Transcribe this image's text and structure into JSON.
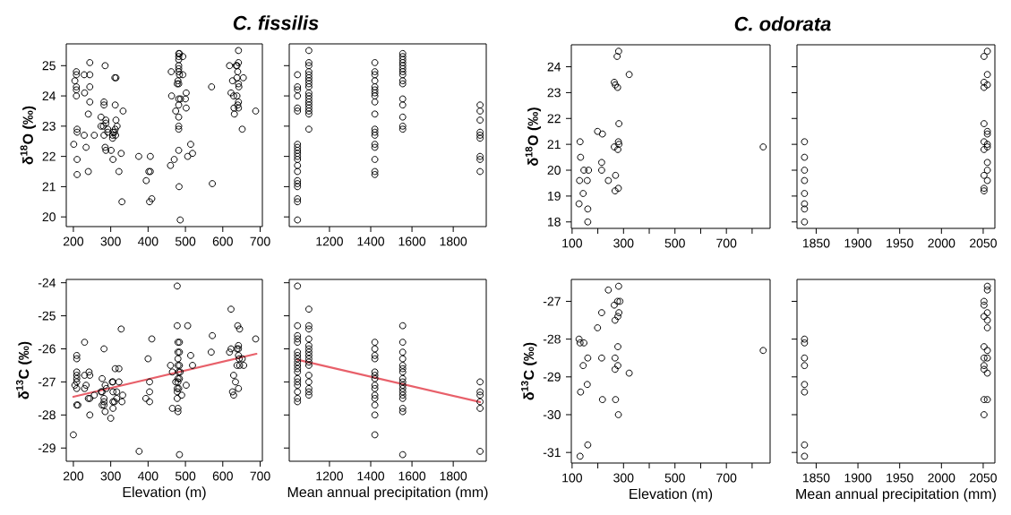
{
  "chart_data": [
    {
      "type": "scatter",
      "title": "C. fissilis",
      "ylabel": "δ$^{18}$O (‰)",
      "marker": "circle",
      "xlim": [
        181,
        706
      ],
      "ylim": [
        19.68,
        25.72
      ],
      "xticks": [
        200,
        300,
        400,
        500,
        600,
        700
      ],
      "yticks": [
        20,
        21,
        22,
        23,
        24,
        25
      ],
      "series": [
        {
          "color": "#000000",
          "x": [
            201,
            204,
            208,
            208,
            208,
            208,
            208,
            210,
            210,
            210,
            210,
            229,
            230,
            229,
            234,
            244,
            244,
            244,
            244,
            240,
            240,
            256,
            285,
            282,
            282,
            274,
            274,
            280,
            282,
            287,
            287,
            285,
            287,
            292,
            292,
            301,
            306,
            305,
            305,
            306,
            312,
            310,
            313,
            311,
            314,
            312,
            314,
            317,
            322,
            328,
            333,
            330,
            375,
            395,
            406,
            402,
            406,
            404,
            410,
            460,
            463,
            462,
            470,
            474,
            482,
            484,
            482,
            482,
            482,
            482,
            482,
            484,
            480,
            482,
            478,
            482,
            482,
            487,
            482,
            482,
            482,
            482,
            483,
            486,
            493,
            493,
            502,
            500,
            502,
            506,
            514,
            519,
            570,
            572,
            618,
            622,
            626,
            629,
            630,
            631,
            636,
            638,
            642,
            642,
            640,
            638,
            642,
            643,
            638,
            642,
            640,
            642,
            652,
            655,
            688
          ],
          "values": [
            22.4,
            24.5,
            24.8,
            24.7,
            24.3,
            24.2,
            24.0,
            22.9,
            22.8,
            21.9,
            21.4,
            24.7,
            24.1,
            22.7,
            22.3,
            25.1,
            24.7,
            24.3,
            23.8,
            23.4,
            21.5,
            22.7,
            25.0,
            23.8,
            23.7,
            23.3,
            23.0,
            23.0,
            22.7,
            23.2,
            23.1,
            22.3,
            22.2,
            22.9,
            22.8,
            22.2,
            21.9,
            22.7,
            22.6,
            22.8,
            22.9,
            22.8,
            22.7,
            24.6,
            24.6,
            23.7,
            23.2,
            23.0,
            21.5,
            22.1,
            23.5,
            20.5,
            22.0,
            21.2,
            22.0,
            21.5,
            21.5,
            20.5,
            20.6,
            21.7,
            24.0,
            24.8,
            21.9,
            23.5,
            25.4,
            25.4,
            25.3,
            25.2,
            25.0,
            24.9,
            24.8,
            24.7,
            24.5,
            24.4,
            24.4,
            23.7,
            23.9,
            23.9,
            23.3,
            23.0,
            22.9,
            22.2,
            21.0,
            19.9,
            25.3,
            24.7,
            24.1,
            23.9,
            23.6,
            22.0,
            22.4,
            22.1,
            24.3,
            21.1,
            25.0,
            24.1,
            24.5,
            24.0,
            23.6,
            23.4,
            25.0,
            25.0,
            25.5,
            25.1,
            24.8,
            24.6,
            24.4,
            24.3,
            24.0,
            23.8,
            23.7,
            23.6,
            22.9,
            24.6,
            23.5
          ]
        }
      ]
    },
    {
      "type": "scatter",
      "marker": "circle",
      "tick_labels": "x",
      "xlim": [
        1005,
        1960
      ],
      "ylim": [
        19.68,
        25.72
      ],
      "xticks": [
        1200,
        1400,
        1600,
        1800
      ],
      "yticks": [
        20,
        21,
        22,
        23,
        24,
        25
      ],
      "series": [
        {
          "color": "#000000",
          "x": [
            1045,
            1045,
            1045,
            1045,
            1045,
            1045,
            1045,
            1045,
            1045,
            1045,
            1045,
            1045,
            1045,
            1045,
            1045,
            1045,
            1045,
            1045,
            1045,
            1045,
            1100,
            1100,
            1100,
            1100,
            1100,
            1100,
            1100,
            1100,
            1100,
            1100,
            1100,
            1100,
            1100,
            1100,
            1100,
            1100,
            1100,
            1100,
            1420,
            1420,
            1420,
            1420,
            1420,
            1420,
            1420,
            1420,
            1420,
            1420,
            1420,
            1420,
            1420,
            1420,
            1420,
            1420,
            1420,
            1420,
            1555,
            1555,
            1555,
            1555,
            1555,
            1555,
            1555,
            1555,
            1555,
            1555,
            1555,
            1555,
            1555,
            1555,
            1555,
            1930,
            1930,
            1930,
            1930,
            1930,
            1930,
            1930,
            1930,
            1930
          ],
          "values": [
            24.7,
            24.3,
            24.2,
            24.0,
            23.6,
            23.5,
            22.4,
            22.3,
            22.2,
            22.1,
            22.0,
            21.9,
            21.7,
            21.5,
            21.2,
            21.1,
            21.0,
            20.6,
            20.5,
            19.9,
            25.5,
            25.1,
            25.0,
            24.8,
            24.7,
            24.6,
            24.5,
            24.4,
            24.3,
            24.1,
            24.0,
            23.9,
            23.8,
            23.7,
            23.6,
            23.5,
            23.4,
            22.9,
            25.1,
            24.8,
            24.7,
            24.5,
            24.3,
            24.2,
            24.1,
            24.0,
            23.8,
            23.4,
            22.9,
            22.8,
            22.7,
            22.4,
            22.3,
            21.9,
            21.5,
            21.4,
            25.4,
            25.3,
            25.2,
            25.1,
            25.0,
            24.9,
            24.8,
            24.7,
            24.5,
            24.4,
            23.9,
            23.7,
            23.3,
            23.0,
            22.9,
            23.7,
            23.5,
            23.2,
            22.8,
            22.7,
            22.6,
            22.0,
            21.9,
            21.5
          ]
        }
      ]
    },
    {
      "type": "scatter",
      "title": "C. odorata",
      "ylabel": "δ$^{18}$O (‰)",
      "marker": "circle",
      "xlim": [
        97,
        870
      ],
      "ylim": [
        17.75,
        24.85
      ],
      "xticks": [
        100,
        {
          "value": 200,
          "label": null
        },
        300,
        {
          "value": 400,
          "label": null
        },
        500,
        {
          "value": 600,
          "label": null
        },
        700,
        {
          "value": 800,
          "label": null
        }
      ],
      "yticks": [
        18,
        19,
        20,
        21,
        22,
        23,
        24
      ],
      "series": [
        {
          "color": "#000000",
          "x": [
            131,
            133,
            129,
            127,
            146,
            164,
            159,
            143,
            161,
            161,
            199,
            218,
            215,
            215,
            241,
            264,
            268,
            277,
            275,
            281,
            322,
            282,
            264,
            280,
            282,
            278,
            269,
            267,
            280,
            843
          ],
          "values": [
            21.1,
            20.5,
            19.6,
            18.7,
            20.0,
            20.0,
            19.6,
            19.1,
            18.5,
            18.0,
            21.5,
            21.4,
            20.3,
            20.0,
            19.6,
            23.4,
            23.3,
            23.2,
            24.4,
            24.6,
            23.7,
            21.8,
            20.9,
            21.1,
            21.0,
            20.8,
            19.8,
            19.2,
            19.3,
            20.9
          ]
        }
      ]
    },
    {
      "type": "scatter",
      "marker": "circle",
      "tick_labels": "x",
      "xlim": [
        1827,
        2064
      ],
      "ylim": [
        17.75,
        24.85
      ],
      "xticks": [
        1850,
        1900,
        1950,
        2000,
        2050
      ],
      "yticks": [
        18,
        19,
        20,
        21,
        22,
        23,
        24
      ],
      "series": [
        {
          "color": "#000000",
          "x": [
            1836,
            1836,
            1836,
            1836,
            1836,
            1836,
            1836,
            1836,
            2051,
            2051,
            2051,
            2051,
            2051,
            2051,
            2051,
            2051,
            2051,
            2055,
            2055,
            2055,
            2055,
            2055,
            2055,
            2055,
            2055,
            2055,
            2055
          ],
          "values": [
            21.1,
            20.5,
            20.0,
            19.6,
            19.1,
            18.7,
            18.5,
            18.0,
            24.4,
            23.4,
            23.2,
            21.8,
            21.1,
            20.8,
            19.8,
            19.3,
            19.2,
            24.6,
            23.7,
            23.3,
            21.5,
            21.4,
            21.0,
            20.9,
            20.3,
            20.0,
            19.6
          ]
        }
      ]
    },
    {
      "type": "scatter",
      "ylabel": "δ$^{13}$C (‰)",
      "xlabel": "Elevation (m)",
      "marker": "circle",
      "xlim": [
        181,
        706
      ],
      "ylim": [
        -29.4,
        -23.9
      ],
      "xticks": [
        200,
        300,
        400,
        500,
        600,
        700
      ],
      "yticks": [
        -29,
        -28,
        -27,
        -26,
        -25,
        -24
      ],
      "series": [
        {
          "color": "#000000",
          "x": [
            200,
            209,
            209,
            209,
            209,
            209,
            209,
            204,
            209,
            209,
            212,
            230,
            230,
            234,
            230,
            242,
            244,
            240,
            244,
            244,
            256,
            282,
            277,
            274,
            277,
            285,
            288,
            282,
            277,
            282,
            285,
            282,
            300,
            306,
            304,
            306,
            306,
            310,
            306,
            312,
            322,
            322,
            316,
            316,
            330,
            332,
            328,
            376,
            394,
            400,
            404,
            404,
            404,
            410,
            460,
            465,
            465,
            474,
            478,
            478,
            480,
            484,
            480,
            484,
            480,
            480,
            484,
            482,
            486,
            480,
            484,
            480,
            478,
            482,
            478,
            478,
            480,
            480,
            484,
            490,
            502,
            506,
            514,
            519,
            569,
            572,
            622,
            622,
            618,
            629,
            626,
            629,
            634,
            642,
            640,
            645,
            642,
            638,
            642,
            642,
            644,
            638,
            645,
            652,
            656,
            688
          ],
          "values": [
            -28.6,
            -26.2,
            -26.3,
            -26.7,
            -26.8,
            -26.9,
            -27.0,
            -27.1,
            -27.2,
            -27.7,
            -27.7,
            -25.8,
            -26.8,
            -27.1,
            -27.2,
            -26.7,
            -26.8,
            -27.5,
            -27.5,
            -28.0,
            -27.4,
            -26.0,
            -26.9,
            -27.3,
            -27.3,
            -27.1,
            -27.2,
            -27.5,
            -27.7,
            -27.7,
            -27.9,
            -27.6,
            -28.1,
            -27.0,
            -27.0,
            -27.3,
            -27.6,
            -27.6,
            -27.8,
            -26.6,
            -26.6,
            -27.0,
            -27.3,
            -27.5,
            -27.6,
            -27.4,
            -25.4,
            -29.1,
            -27.5,
            -26.3,
            -27.0,
            -27.3,
            -27.6,
            -25.7,
            -26.5,
            -26.7,
            -27.8,
            -27.0,
            -24.1,
            -25.3,
            -25.8,
            -25.8,
            -26.1,
            -26.1,
            -26.3,
            -26.5,
            -26.5,
            -26.7,
            -26.7,
            -26.9,
            -26.9,
            -27.0,
            -27.2,
            -27.2,
            -27.3,
            -27.5,
            -27.8,
            -27.9,
            -29.2,
            -27.4,
            -27.1,
            -25.3,
            -26.2,
            -26.5,
            -26.1,
            -25.6,
            -24.8,
            -26.0,
            -26.1,
            -26.8,
            -27.3,
            -27.4,
            -27.0,
            -27.2,
            -25.3,
            -25.4,
            -25.9,
            -26.0,
            -26.0,
            -26.2,
            -26.3,
            -26.5,
            -26.5,
            -26.3,
            -26.5,
            -25.7
          ]
        },
        {
          "type": "line",
          "marker": "none",
          "color": "#e8606a",
          "x": [
            200,
            690
          ],
          "values": [
            -27.45,
            -26.15
          ]
        }
      ]
    },
    {
      "type": "scatter",
      "xlabel": "Mean annual precipitation (mm)",
      "marker": "circle",
      "tick_labels": "x",
      "xlim": [
        1005,
        1960
      ],
      "ylim": [
        -29.4,
        -23.9
      ],
      "xticks": [
        1200,
        1400,
        1600,
        1800
      ],
      "yticks": [
        -29,
        -28,
        -27,
        -26,
        -25,
        -24
      ],
      "series": [
        {
          "color": "#000000",
          "x": [
            1045,
            1045,
            1045,
            1045,
            1045,
            1045,
            1045,
            1045,
            1045,
            1045,
            1045,
            1045,
            1045,
            1045,
            1045,
            1045,
            1045,
            1045,
            1100,
            1100,
            1100,
            1100,
            1100,
            1100,
            1100,
            1100,
            1100,
            1100,
            1100,
            1100,
            1100,
            1100,
            1100,
            1100,
            1420,
            1420,
            1420,
            1420,
            1420,
            1420,
            1420,
            1420,
            1420,
            1420,
            1420,
            1420,
            1420,
            1420,
            1555,
            1555,
            1555,
            1555,
            1555,
            1555,
            1555,
            1555,
            1555,
            1555,
            1555,
            1555,
            1555,
            1555,
            1555,
            1555,
            1555,
            1930,
            1930,
            1930,
            1930,
            1930,
            1930
          ],
          "values": [
            -24.1,
            -25.3,
            -25.6,
            -25.7,
            -25.8,
            -26.1,
            -26.2,
            -26.3,
            -26.4,
            -26.5,
            -26.6,
            -26.7,
            -26.9,
            -27.0,
            -27.1,
            -27.3,
            -27.5,
            -27.6,
            -24.8,
            -25.3,
            -25.4,
            -25.7,
            -25.9,
            -26.0,
            -26.1,
            -26.2,
            -26.3,
            -26.4,
            -26.5,
            -26.8,
            -27.0,
            -27.2,
            -27.3,
            -27.4,
            -25.8,
            -26.0,
            -26.2,
            -26.3,
            -26.7,
            -26.8,
            -26.9,
            -27.1,
            -27.2,
            -27.4,
            -27.5,
            -27.7,
            -28.0,
            -28.6,
            -25.3,
            -25.8,
            -26.1,
            -26.3,
            -26.5,
            -26.6,
            -26.7,
            -26.9,
            -27.0,
            -27.1,
            -27.2,
            -27.3,
            -27.4,
            -27.5,
            -27.8,
            -27.9,
            -29.2,
            -27.0,
            -27.3,
            -27.4,
            -27.6,
            -27.8,
            -29.1
          ]
        },
        {
          "type": "line",
          "marker": "none",
          "color": "#e8606a",
          "x": [
            1045,
            1930
          ],
          "values": [
            -26.33,
            -27.61
          ]
        }
      ]
    },
    {
      "type": "scatter",
      "ylabel": "δ$^{13}$C (‰)",
      "xlabel": "Elevation (m)",
      "marker": "circle",
      "xlim": [
        97,
        870
      ],
      "ylim": [
        -31.28,
        -26.42
      ],
      "xticks": [
        100,
        {
          "value": 200,
          "label": null
        },
        300,
        {
          "value": 400,
          "label": null
        },
        500,
        {
          "value": 600,
          "label": null
        },
        700,
        {
          "value": 800,
          "label": null
        }
      ],
      "yticks": [
        -31,
        -30,
        -29,
        -28,
        -27
      ],
      "series": [
        {
          "color": "#000000",
          "x": [
            127,
            131,
            146,
            161,
            143,
            159,
            133,
            161,
            131,
            199,
            215,
            215,
            218,
            241,
            281,
            264,
            277,
            286,
            282,
            278,
            267,
            278,
            267,
            278,
            267,
            322,
            269,
            280,
            843
          ],
          "values": [
            -28.0,
            -28.1,
            -28.1,
            -28.5,
            -28.7,
            -29.2,
            -29.4,
            -30.8,
            -31.1,
            -27.7,
            -27.3,
            -28.5,
            -29.6,
            -26.7,
            -26.6,
            -27.1,
            -27.0,
            -27.0,
            -27.3,
            -27.4,
            -27.5,
            -28.2,
            -28.5,
            -28.7,
            -28.8,
            -28.9,
            -29.6,
            -30.0,
            -28.3
          ]
        }
      ]
    },
    {
      "type": "scatter",
      "xlabel": "Mean annual precipitation (mm)",
      "marker": "circle",
      "tick_labels": "x",
      "xlim": [
        1827,
        2064
      ],
      "ylim": [
        -31.28,
        -26.42
      ],
      "xticks": [
        1850,
        1900,
        1950,
        2000,
        2050
      ],
      "yticks": [
        -31,
        -30,
        -29,
        -28,
        -27
      ],
      "series": [
        {
          "color": "#000000",
          "x": [
            1836,
            1836,
            1836,
            1836,
            1836,
            1836,
            1836,
            1836,
            2051,
            2051,
            2051,
            2051,
            2051,
            2051,
            2051,
            2051,
            2051,
            2055,
            2055,
            2055,
            2055,
            2055,
            2055,
            2055,
            2055,
            2055
          ],
          "values": [
            -28.0,
            -28.1,
            -28.5,
            -28.7,
            -29.2,
            -29.4,
            -30.8,
            -31.1,
            -27.0,
            -27.1,
            -27.4,
            -28.2,
            -28.5,
            -28.7,
            -28.8,
            -29.6,
            -30.0,
            -26.6,
            -26.7,
            -27.3,
            -27.5,
            -27.7,
            -28.3,
            -28.5,
            -28.9,
            -29.6
          ]
        }
      ]
    }
  ]
}
